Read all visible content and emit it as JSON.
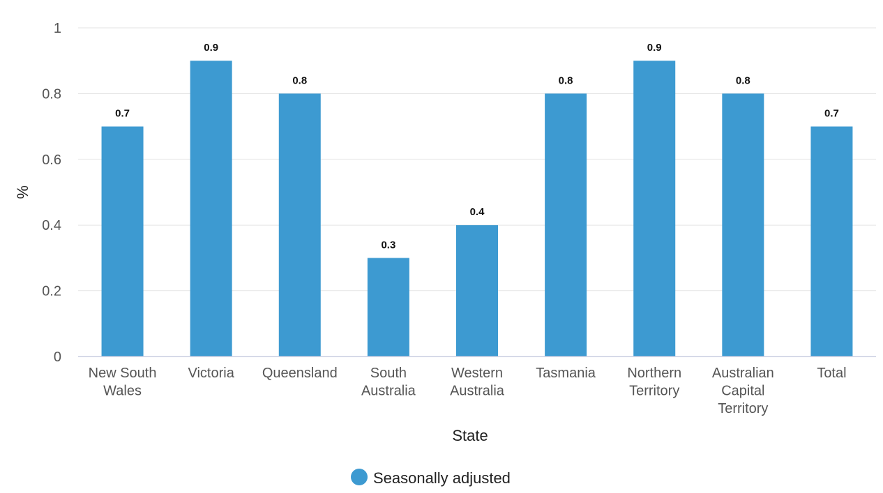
{
  "chart_data": {
    "type": "bar",
    "categories": [
      [
        "New South",
        "Wales"
      ],
      [
        "Victoria"
      ],
      [
        "Queensland"
      ],
      [
        "South",
        "Australia"
      ],
      [
        "Western",
        "Australia"
      ],
      [
        "Tasmania"
      ],
      [
        "Northern",
        "Territory"
      ],
      [
        "Australian",
        "Capital",
        "Territory"
      ],
      [
        "Total"
      ]
    ],
    "series": [
      {
        "name": "Seasonally adjusted",
        "color": "#3d9ad1",
        "values": [
          0.7,
          0.9,
          0.8,
          0.3,
          0.4,
          0.8,
          0.9,
          0.8,
          0.7
        ],
        "value_labels": [
          "0.7",
          "0.9",
          "0.8",
          "0.3",
          "0.4",
          "0.8",
          "0.9",
          "0.8",
          "0.7"
        ]
      }
    ],
    "xlabel": "State",
    "ylabel": "%",
    "ylim": [
      0,
      1
    ],
    "yticks": [
      0,
      0.2,
      0.4,
      0.6,
      0.8,
      1
    ],
    "ytick_labels": [
      "0",
      "0.2",
      "0.4",
      "0.6",
      "0.8",
      "1"
    ],
    "grid": true,
    "legend_position": "bottom-center"
  }
}
